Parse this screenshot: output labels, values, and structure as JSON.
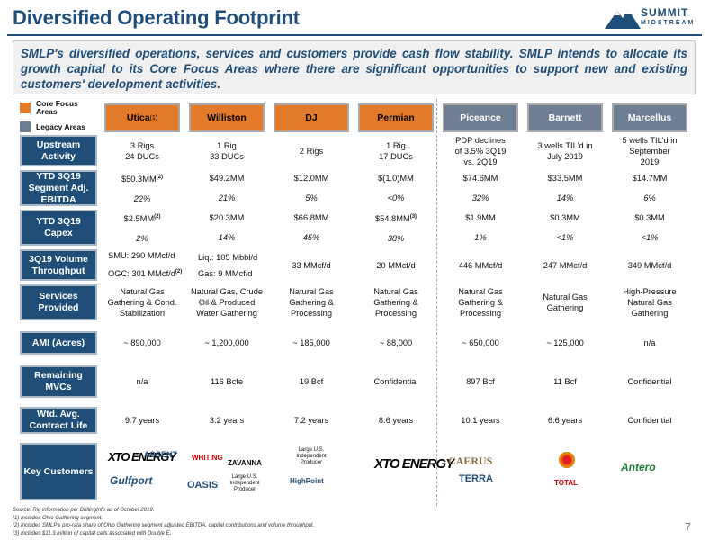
{
  "title": "Diversified Operating Footprint",
  "brand": {
    "name": "SUMMIT",
    "sub": "MIDSTREAM"
  },
  "intro": "SMLP's diversified operations, services and customers provide cash flow stability. SMLP intends to allocate its growth capital to its Core Focus Areas where there are significant opportunities to support new and existing customers' development activities.",
  "legend": {
    "core": "Core Focus Areas",
    "legacy": "Legacy Areas",
    "core_color": "#e37a2a",
    "legacy_color": "#6f7f93"
  },
  "columns": [
    {
      "name": "Utica",
      "sup": "(1)"
    },
    {
      "name": "Williston",
      "sup": ""
    },
    {
      "name": "DJ",
      "sup": ""
    },
    {
      "name": "Permian",
      "sup": ""
    },
    {
      "name": "Piceance",
      "sup": ""
    },
    {
      "name": "Barnett",
      "sup": ""
    },
    {
      "name": "Marcellus",
      "sup": ""
    }
  ],
  "row_labels": {
    "upstream": "Upstream Activity",
    "ebitda": "YTD 3Q19 Segment Adj. EBITDA",
    "capex": "YTD 3Q19 Capex",
    "volume": "3Q19 Volume Throughput",
    "services": "Services Provided",
    "ami": "AMI (Acres)",
    "mvcs": "Remaining MVCs",
    "contract": "Wtd. Avg. Contract Life",
    "customers": "Key Customers"
  },
  "upstream": [
    "3 Rigs\n24 DUCs",
    "1 Rig\n33 DUCs",
    "2 Rigs",
    "1 Rig\n17 DUCs",
    "PDP declines\nof 3.5% 3Q19\nvs. 2Q19",
    "3 wells TIL'd in\nJuly 2019",
    "5 wells TIL'd in\nSeptember\n2019"
  ],
  "ebitda": [
    "$50.3MM",
    "$49.2MM",
    "$12.0MM",
    "$(1.0)MM",
    "$74.6MM",
    "$33.5MM",
    "$14.7MM"
  ],
  "ebitda_sup": [
    "(2)",
    "",
    "",
    "",
    "",
    "",
    ""
  ],
  "ebitda_pct": [
    "22%",
    "21%",
    "5%",
    "<0%",
    "32%",
    "14%",
    "6%"
  ],
  "capex": [
    "$2.5MM",
    "$20.3MM",
    "$66.8MM",
    "$54.8MM",
    "$1.9MM",
    "$0.3MM",
    "$0.3MM"
  ],
  "capex_sup": [
    "(2)",
    "",
    "",
    "(3)",
    "",
    "",
    ""
  ],
  "capex_pct": [
    "2%",
    "14%",
    "45%",
    "38%",
    "1%",
    "<1%",
    "<1%"
  ],
  "volume": {
    "utica_1": "SMU: 290 MMcf/d",
    "utica_2": "OGC: 301 MMcf/d",
    "utica_2_sup": "(2)",
    "williston_1": "Liq.: 105 Mbbl/d",
    "williston_2": "Gas: 9 MMcf/d",
    "rest": [
      "33 MMcf/d",
      "20 MMcf/d",
      "446 MMcf/d",
      "247 MMcf/d",
      "349 MMcf/d"
    ]
  },
  "services": [
    "Natural Gas\nGathering & Cond.\nStabilization",
    "Natural Gas, Crude\nOil & Produced\nWater Gathering",
    "Natural Gas\nGathering &\nProcessing",
    "Natural Gas\nGathering &\nProcessing",
    "Natural Gas\nGathering &\nProcessing",
    "Natural Gas\nGathering",
    "High-Pressure\nNatural Gas\nGathering"
  ],
  "ami": [
    "~ 890,000",
    "~ 1,200,000",
    "~ 185,000",
    "~ 88,000",
    "~ 650,000",
    "~ 125,000",
    "n/a"
  ],
  "mvcs": [
    "n/a",
    "116 Bcfe",
    "19 Bcf",
    "Confidential",
    "897 Bcf",
    "11 Bcf",
    "Confidential"
  ],
  "contract": [
    "9.7 years",
    "3.2 years",
    "7.2 years",
    "8.6 years",
    "10.1 years",
    "6.6 years",
    "Confidential"
  ],
  "customers": {
    "utica": [
      "XTO ENERGY",
      "ASCENT",
      "Gulfport"
    ],
    "williston": [
      "WHITING",
      "ZAVANNA",
      "OASIS",
      "Large U.S. Independent Producer"
    ],
    "dj": [
      "Large U.S. Independent Producer",
      "HighPoint"
    ],
    "permian": [
      "XTO ENERGY"
    ],
    "piceance": [
      "CAERUS",
      "TERRA"
    ],
    "barnett": [
      "TOTAL"
    ],
    "marcellus": [
      "Antero"
    ]
  },
  "footnotes": [
    "Source: Rig information per DrillingInfo as of October 2019.",
    "(1)    Includes Ohio Gathering segment.",
    "(2)    Includes SMLP's pro-rata share of Ohio Gathering segment adjusted EBITDA, capital contributions and volume throughput.",
    "(3)    Includes $11.3 million of capital calls associated with Double E."
  ],
  "page_number": "7"
}
